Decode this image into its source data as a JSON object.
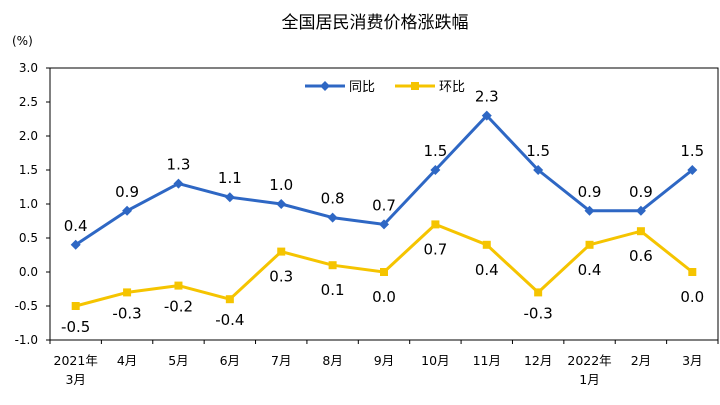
{
  "chart_data": {
    "type": "line",
    "title": "全国居民消费价格涨跌幅",
    "unit_label": "(%)",
    "categories": [
      [
        "2021年",
        "3月"
      ],
      [
        "4月"
      ],
      [
        "5月"
      ],
      [
        "6月"
      ],
      [
        "7月"
      ],
      [
        "8月"
      ],
      [
        "9月"
      ],
      [
        "10月"
      ],
      [
        "11月"
      ],
      [
        "12月"
      ],
      [
        "2022年",
        "1月"
      ],
      [
        "2月"
      ],
      [
        "3月"
      ]
    ],
    "ylim": [
      -1.0,
      3.0
    ],
    "yticks": [
      -1.0,
      -0.5,
      0.0,
      0.5,
      1.0,
      1.5,
      2.0,
      2.5,
      3.0
    ],
    "ytick_labels": [
      "-1.0",
      "-0.5",
      "0.0",
      "0.5",
      "1.0",
      "1.5",
      "2.0",
      "2.5",
      "3.0"
    ],
    "grid": false,
    "legend_position": "top-center",
    "series": [
      {
        "name": "同比",
        "color": "#2e67c4",
        "marker": "diamond",
        "values": [
          0.4,
          0.9,
          1.3,
          1.1,
          1.0,
          0.8,
          0.7,
          1.5,
          2.3,
          1.5,
          0.9,
          0.9,
          1.5
        ],
        "labels": [
          "0.4",
          "0.9",
          "1.3",
          "1.1",
          "1.0",
          "0.8",
          "0.7",
          "1.5",
          "2.3",
          "1.5",
          "0.9",
          "0.9",
          "1.5"
        ]
      },
      {
        "name": "环比",
        "color": "#f5c400",
        "marker": "square",
        "values": [
          -0.5,
          -0.3,
          -0.2,
          -0.4,
          0.3,
          0.1,
          0.0,
          0.7,
          0.4,
          -0.3,
          0.4,
          0.6,
          0.0
        ],
        "labels": [
          "-0.5",
          "-0.3",
          "-0.2",
          "-0.4",
          "0.3",
          "0.1",
          "0.0",
          "0.7",
          "0.4",
          "-0.3",
          "0.4",
          "0.6",
          "0.0"
        ]
      }
    ]
  }
}
